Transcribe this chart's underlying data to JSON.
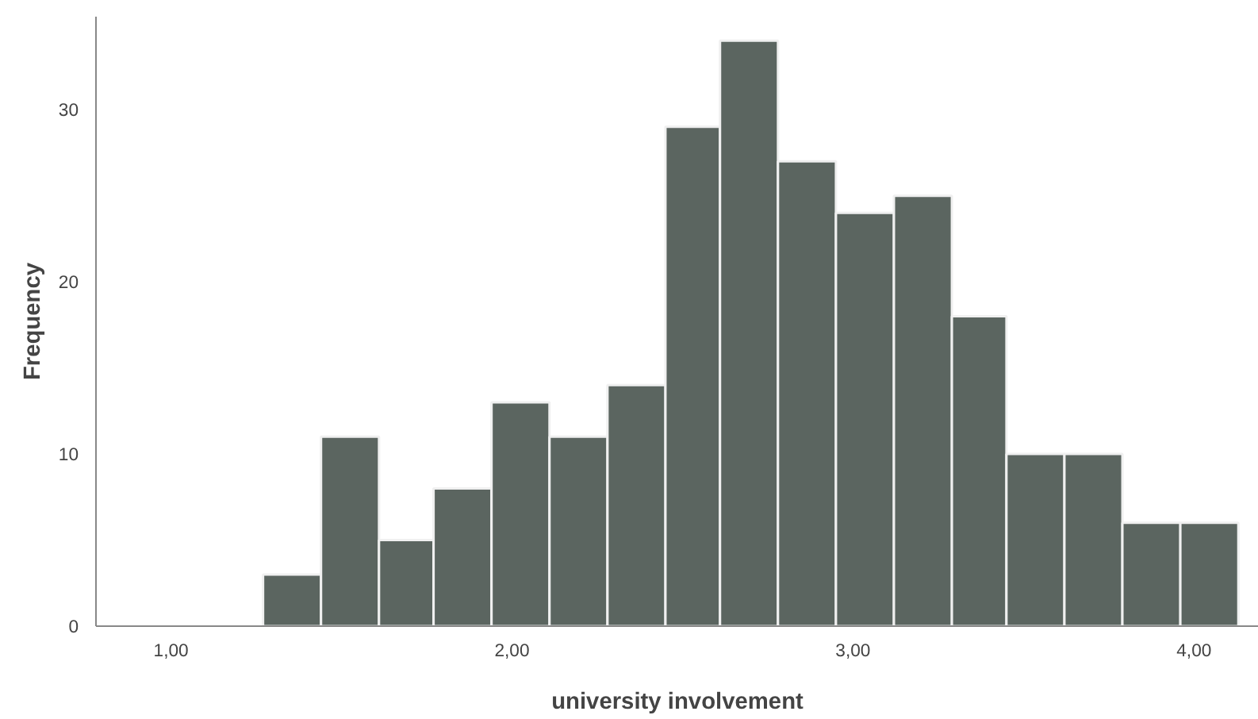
{
  "chart_data": {
    "type": "histogram",
    "xlabel": "university involvement",
    "ylabel": "Frequency",
    "bins": [
      1.27,
      1.44,
      1.61,
      1.77,
      1.94,
      2.11,
      2.28,
      2.45,
      2.61,
      2.78,
      2.95,
      3.12,
      3.29,
      3.45,
      3.62,
      3.79,
      3.96,
      4.13
    ],
    "values": [
      3,
      11,
      5,
      8,
      13,
      11,
      14,
      29,
      34,
      27,
      24,
      25,
      18,
      10,
      10,
      6,
      6
    ],
    "color": "#5b6560",
    "xlim": [
      0.78,
      4.19
    ],
    "ylim": [
      0,
      35.4
    ],
    "xticks": [
      {
        "value": 1,
        "label": "1,00"
      },
      {
        "value": 2,
        "label": "2,00"
      },
      {
        "value": 3,
        "label": "3,00"
      },
      {
        "value": 4,
        "label": "4,00"
      }
    ],
    "yticks": [
      0,
      10,
      20,
      30
    ],
    "grid": false
  }
}
